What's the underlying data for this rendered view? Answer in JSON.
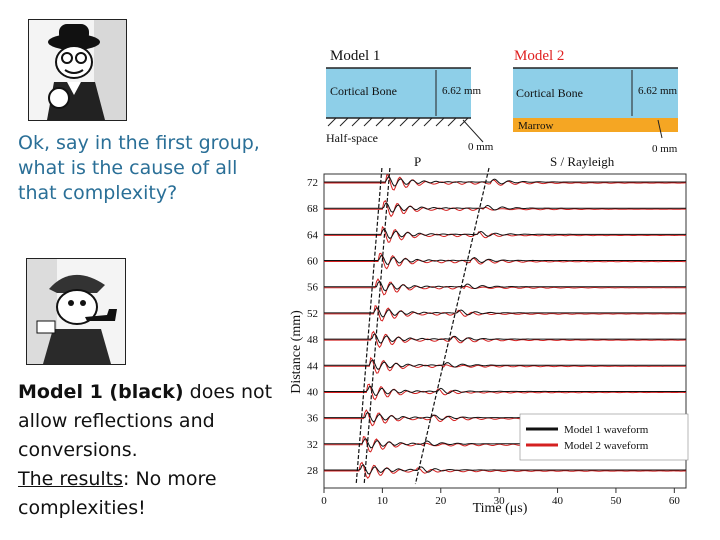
{
  "left": {
    "question": "Ok, say in the first group, what is the cause of all that complexity?",
    "answer_bold": "Model 1 (black)",
    "answer_rest": " does not allow reflections and conversions.",
    "results_label": "The results",
    "results_rest": ":  No more complexities!"
  },
  "models": {
    "m1_title": "Model 1",
    "m2_title": "Model 2",
    "cortical": "Cortical Bone",
    "thickness": "6.62 mm",
    "halfspace": "Half-space",
    "marrow": "Marrow",
    "zero_mm": "0 mm",
    "m1_title_color": "#111111",
    "m2_title_color": "#e02020",
    "bone_color": "#8ecfe8",
    "marrow_color": "#f5a623"
  },
  "chart_data": {
    "type": "line",
    "xlabel": "Time (μs)",
    "ylabel": "Distance (mm)",
    "xlim": [
      0,
      62
    ],
    "x_ticks": [
      0,
      10,
      20,
      30,
      40,
      50,
      60
    ],
    "y_ticks": [
      72,
      68,
      64,
      60,
      56,
      52,
      48,
      44,
      40,
      36,
      32,
      28
    ],
    "annotations": [
      "P",
      "S / Rayleigh"
    ],
    "legend": [
      "Model 1 waveform",
      "Model 2 waveform"
    ],
    "series_colors": [
      "#111111",
      "#d42020"
    ],
    "p_arrival_us": [
      6.2,
      10.6
    ],
    "s_arrival_us": [
      16.0,
      28.6
    ],
    "range_mm": [
      28,
      72
    ]
  }
}
